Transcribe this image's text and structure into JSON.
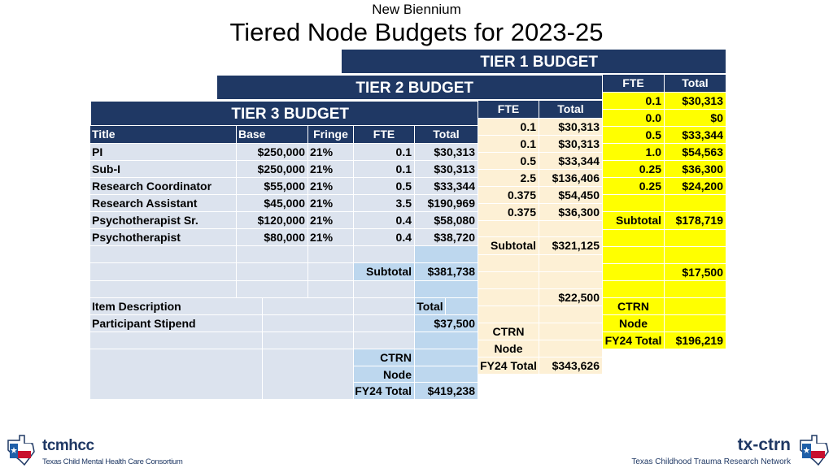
{
  "header": {
    "subtitle": "New Biennium",
    "title": "Tiered Node Budgets for 2023-25"
  },
  "tier1": {
    "label": "TIER 1 BUDGET",
    "col_fte": "FTE",
    "col_total": "Total",
    "rows": [
      {
        "fte": "0.1",
        "total": "$30,313"
      },
      {
        "fte": "0.0",
        "total": "$0"
      },
      {
        "fte": "0.5",
        "total": "$33,344"
      },
      {
        "fte": "1.0",
        "total": "$54,563"
      },
      {
        "fte": "0.25",
        "total": "$36,300"
      },
      {
        "fte": "0.25",
        "total": "$24,200"
      }
    ],
    "subtotal_label": "Subtotal",
    "subtotal": "$178,719",
    "other": "$17,500",
    "node_label_1": "CTRN",
    "node_label_2": "Node",
    "node_label_3": "FY24 Total",
    "node_total": "$196,219"
  },
  "tier2": {
    "label": "TIER 2 BUDGET",
    "col_fte": "FTE",
    "col_total": "Total",
    "rows": [
      {
        "fte": "0.1",
        "total": "$30,313"
      },
      {
        "fte": "0.1",
        "total": "$30,313"
      },
      {
        "fte": "0.5",
        "total": "$33,344"
      },
      {
        "fte": "2.5",
        "total": "$136,406"
      },
      {
        "fte": "0.375",
        "total": "$54,450"
      },
      {
        "fte": "0.375",
        "total": "$36,300"
      }
    ],
    "subtotal_label": "Subtotal",
    "subtotal": "$321,125",
    "other": "$22,500",
    "node_label_1": "CTRN",
    "node_label_2": "Node",
    "node_label_3": "FY24 Total",
    "node_total": "$343,626"
  },
  "tier3": {
    "label": "TIER 3 BUDGET",
    "col_title": "Title",
    "col_base": "Base",
    "col_fringe": "Fringe",
    "col_fte": "FTE",
    "col_total": "Total",
    "rows": [
      {
        "title": "PI",
        "base": "$250,000",
        "fringe": "21%",
        "fte": "0.1",
        "total": "$30,313"
      },
      {
        "title": "Sub-I",
        "base": "$250,000",
        "fringe": "21%",
        "fte": "0.1",
        "total": "$30,313"
      },
      {
        "title": "Research Coordinator",
        "base": "$55,000",
        "fringe": "21%",
        "fte": "0.5",
        "total": "$33,344"
      },
      {
        "title": "Research Assistant",
        "base": "$45,000",
        "fringe": "21%",
        "fte": "3.5",
        "total": "$190,969"
      },
      {
        "title": "Psychotherapist Sr.",
        "base": "$120,000",
        "fringe": "21%",
        "fte": "0.4",
        "total": "$58,080"
      },
      {
        "title": "Psychotherapist",
        "base": "$80,000",
        "fringe": "21%",
        "fte": "0.4",
        "total": "$38,720"
      }
    ],
    "subtotal_label": "Subtotal",
    "subtotal": "$381,738",
    "item_desc_label": "Item Description",
    "item_total_label": "Total",
    "item_name": "Participant Stipend",
    "item_total": "$37,500",
    "node_label_1": "CTRN",
    "node_label_2": "Node",
    "node_label_3": "FY24 Total",
    "node_total": "$419,238"
  },
  "footer": {
    "left_logo": "tcmhcc",
    "left_caption": "Texas Child Mental Health Care Consortium",
    "right_logo": "tx-ctrn",
    "right_caption": "Texas Childhood Trauma Research Network"
  },
  "colors": {
    "navy": "#1f3864",
    "tier1_fill": "#ffff00",
    "tier2_fill": "#fdf0d5",
    "tier3_fill": "#dce3ee",
    "texas_red": "#c8102e",
    "texas_blue": "#1f5fa8"
  }
}
